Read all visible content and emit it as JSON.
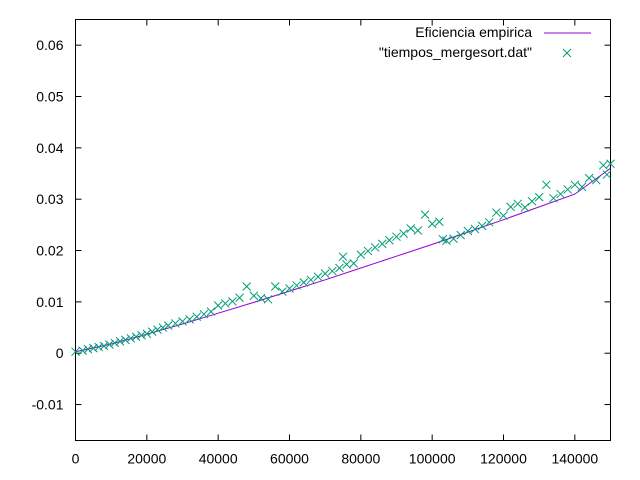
{
  "chart_data": {
    "type": "scatter",
    "title": "",
    "xlabel": "",
    "ylabel": "",
    "xlim": [
      0,
      150000
    ],
    "ylim": [
      -0.017,
      0.065
    ],
    "xticks": [
      0,
      20000,
      40000,
      60000,
      80000,
      100000,
      120000,
      140000
    ],
    "xtick_labels": [
      "0",
      "20000",
      "40000",
      "60000",
      "80000",
      "100000",
      "120000",
      "140000"
    ],
    "yticks": [
      -0.01,
      0,
      0.01,
      0.02,
      0.03,
      0.04,
      0.05,
      0.06
    ],
    "ytick_labels": [
      "-0.01",
      "0",
      "0.01",
      "0.02",
      "0.03",
      "0.04",
      "0.05",
      "0.06"
    ],
    "grid": false,
    "legend_position": "top-right",
    "colors": {
      "line": "#9400d3",
      "points": "#009e73"
    },
    "series": [
      {
        "name": "Eficiencia empirica",
        "kind": "line",
        "x": [
          0,
          10000,
          20000,
          30000,
          40000,
          50000,
          60000,
          70000,
          80000,
          90000,
          100000,
          110000,
          120000,
          130000,
          140000,
          150000
        ],
        "y": [
          0.0003,
          0.0018,
          0.0037,
          0.0057,
          0.0078,
          0.0099,
          0.0121,
          0.0143,
          0.0166,
          0.0189,
          0.0212,
          0.0236,
          0.026,
          0.0285,
          0.031,
          0.036
        ]
      },
      {
        "name": "\"tiempos_mergesort.dat\"",
        "kind": "points",
        "x": [
          0,
          2000,
          3500,
          5000,
          6500,
          8000,
          9500,
          11000,
          12500,
          14000,
          15500,
          17000,
          18500,
          20000,
          21500,
          23000,
          24500,
          26000,
          28000,
          30000,
          32000,
          34000,
          36000,
          38000,
          40000,
          42000,
          44000,
          46000,
          48000,
          50000,
          52000,
          54000,
          56000,
          58000,
          60000,
          62000,
          64000,
          66000,
          68000,
          70000,
          72000,
          74000,
          75000,
          76000,
          78000,
          80000,
          82000,
          84000,
          86000,
          88000,
          90000,
          92000,
          94000,
          96000,
          98000,
          100000,
          102000,
          103000,
          104000,
          106000,
          108000,
          110000,
          112000,
          114000,
          116000,
          118000,
          120000,
          122000,
          124000,
          126000,
          128000,
          130000,
          132000,
          134000,
          136000,
          138000,
          140000,
          142000,
          144000,
          146000,
          148000,
          149000,
          150000
        ],
        "y": [
          0.0003,
          0.0005,
          0.0008,
          0.001,
          0.0012,
          0.0014,
          0.0017,
          0.002,
          0.0023,
          0.0026,
          0.0029,
          0.0032,
          0.0035,
          0.0038,
          0.0042,
          0.0046,
          0.005,
          0.0054,
          0.0058,
          0.0062,
          0.0066,
          0.0071,
          0.0076,
          0.0081,
          0.0093,
          0.0097,
          0.0101,
          0.0108,
          0.013,
          0.0112,
          0.0107,
          0.0105,
          0.013,
          0.012,
          0.0126,
          0.0132,
          0.0138,
          0.0143,
          0.0149,
          0.0155,
          0.016,
          0.0166,
          0.0188,
          0.0173,
          0.0175,
          0.0192,
          0.0199,
          0.0206,
          0.0213,
          0.022,
          0.0227,
          0.0233,
          0.0243,
          0.0239,
          0.027,
          0.0252,
          0.0256,
          0.0222,
          0.0219,
          0.0223,
          0.023,
          0.0238,
          0.0242,
          0.0248,
          0.0255,
          0.0274,
          0.0268,
          0.0285,
          0.0291,
          0.0284,
          0.0296,
          0.0304,
          0.0328,
          0.0302,
          0.031,
          0.0319,
          0.0328,
          0.0324,
          0.0341,
          0.0337,
          0.0366,
          0.0348,
          0.0369
        ]
      }
    ]
  }
}
